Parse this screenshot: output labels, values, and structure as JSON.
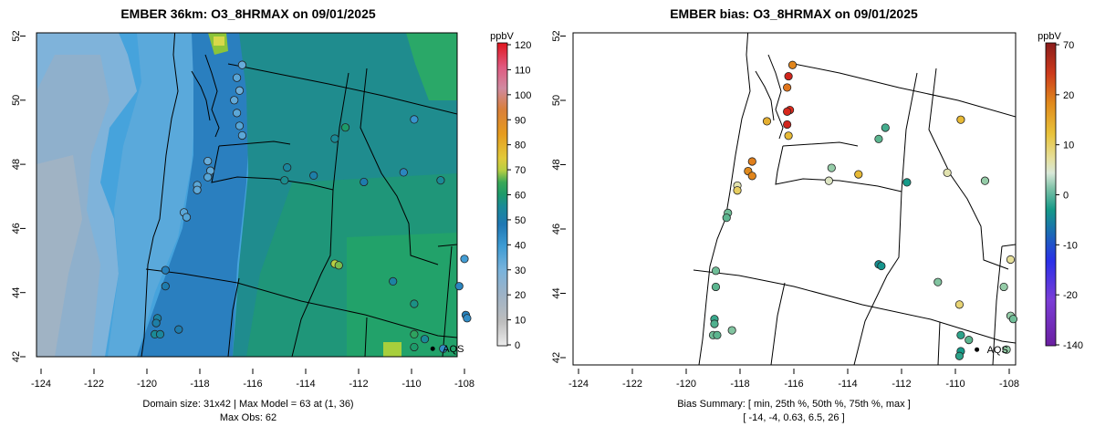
{
  "left_panel": {
    "title": "EMBER 36km: O3_8HRMAX on 09/01/2025",
    "x_ticks": [
      "-124",
      "-122",
      "-120",
      "-118",
      "-116",
      "-114",
      "-112",
      "-110",
      "-108"
    ],
    "y_ticks": [
      "42",
      "44",
      "46",
      "48",
      "50",
      "52"
    ],
    "colorbar_unit": "ppbV",
    "colorbar_ticks": [
      "0",
      "10",
      "20",
      "30",
      "40",
      "50",
      "60",
      "70",
      "80",
      "90",
      "100",
      "110",
      "120"
    ],
    "station_label": "AQS",
    "footer_line1": "Domain size: 31x42 | Max Model = 63 at (1, 36)",
    "footer_line2": "Max Obs: 62"
  },
  "right_panel": {
    "title": "EMBER bias: O3_8HRMAX on 09/01/2025",
    "x_ticks": [
      "-124",
      "-122",
      "-120",
      "-118",
      "-116",
      "-114",
      "-112",
      "-110",
      "-108"
    ],
    "y_ticks": [
      "42",
      "44",
      "46",
      "48",
      "50",
      "52"
    ],
    "colorbar_unit": "ppbV",
    "colorbar_ticks": [
      "-140",
      "-20",
      "-10",
      "0",
      "10",
      "20",
      "70"
    ],
    "station_label": "AQS",
    "footer_line1": "Bias Summary: [ min, 25th %, 50th %, 75th %, max ]",
    "footer_line2": "[ -14,   -4,   0.63,   6.5,   26 ]"
  },
  "colors": {
    "ocean_far": "#a3b4c4",
    "ocean_mid": "#8ab1d1",
    "coast_low": "#58a8d8",
    "model_mid": "#2f8ac4",
    "model_inland": "#1f8f9a",
    "model_high": "#21a06a",
    "model_peak": "#8bc43a",
    "bias_neg": "#3cb1a0",
    "bias_pos": "#e89a1a",
    "bias_high": "#e02020"
  },
  "stations_obs": [
    {
      "lon": -116.4,
      "lat": 51.1,
      "v": 33
    },
    {
      "lon": -116.6,
      "lat": 50.7,
      "v": 35
    },
    {
      "lon": -116.5,
      "lat": 50.3,
      "v": 32
    },
    {
      "lon": -116.7,
      "lat": 50.0,
      "v": 34
    },
    {
      "lon": -116.6,
      "lat": 49.6,
      "v": 35
    },
    {
      "lon": -116.5,
      "lat": 49.2,
      "v": 36
    },
    {
      "lon": -116.4,
      "lat": 48.9,
      "v": 35
    },
    {
      "lon": -117.7,
      "lat": 48.1,
      "v": 33
    },
    {
      "lon": -117.6,
      "lat": 47.8,
      "v": 34
    },
    {
      "lon": -117.7,
      "lat": 47.6,
      "v": 36
    },
    {
      "lon": -118.1,
      "lat": 47.35,
      "v": 35
    },
    {
      "lon": -118.1,
      "lat": 47.2,
      "v": 34
    },
    {
      "lon": -118.6,
      "lat": 46.5,
      "v": 35
    },
    {
      "lon": -118.5,
      "lat": 46.35,
      "v": 36
    },
    {
      "lon": -119.3,
      "lat": 44.7,
      "v": 44
    },
    {
      "lon": -119.3,
      "lat": 44.2,
      "v": 46
    },
    {
      "lon": -119.6,
      "lat": 43.2,
      "v": 48
    },
    {
      "lon": -119.65,
      "lat": 43.05,
      "v": 47
    },
    {
      "lon": -119.7,
      "lat": 42.7,
      "v": 50
    },
    {
      "lon": -119.5,
      "lat": 42.7,
      "v": 49
    },
    {
      "lon": -118.8,
      "lat": 42.85,
      "v": 46
    },
    {
      "lon": -114.7,
      "lat": 47.9,
      "v": 49
    },
    {
      "lon": -114.8,
      "lat": 47.5,
      "v": 51
    },
    {
      "lon": -113.7,
      "lat": 47.65,
      "v": 47
    },
    {
      "lon": -112.9,
      "lat": 48.8,
      "v": 50
    },
    {
      "lon": -112.5,
      "lat": 49.15,
      "v": 55
    },
    {
      "lon": -111.8,
      "lat": 47.45,
      "v": 46
    },
    {
      "lon": -109.9,
      "lat": 49.4,
      "v": 41
    },
    {
      "lon": -110.3,
      "lat": 47.75,
      "v": 43
    },
    {
      "lon": -108.9,
      "lat": 47.5,
      "v": 50
    },
    {
      "lon": -112.9,
      "lat": 44.9,
      "v": 62
    },
    {
      "lon": -112.75,
      "lat": 44.85,
      "v": 61
    },
    {
      "lon": -110.7,
      "lat": 44.35,
      "v": 48
    },
    {
      "lon": -109.9,
      "lat": 43.65,
      "v": 52
    },
    {
      "lon": -109.9,
      "lat": 42.7,
      "v": 58
    },
    {
      "lon": -109.9,
      "lat": 42.3,
      "v": 55
    },
    {
      "lon": -109.5,
      "lat": 42.55,
      "v": 50
    },
    {
      "lon": -108.8,
      "lat": 42.25,
      "v": 42
    },
    {
      "lon": -108.2,
      "lat": 44.2,
      "v": 43
    },
    {
      "lon": -108.0,
      "lat": 45.05,
      "v": 39
    },
    {
      "lon": -107.95,
      "lat": 43.3,
      "v": 44
    },
    {
      "lon": -107.9,
      "lat": 43.2,
      "v": 42
    }
  ],
  "stations_bias": [
    {
      "lon": -116.05,
      "lat": 51.1,
      "v": 15
    },
    {
      "lon": -116.2,
      "lat": 50.75,
      "v": 26
    },
    {
      "lon": -116.25,
      "lat": 50.4,
      "v": 18
    },
    {
      "lon": -116.15,
      "lat": 49.7,
      "v": 24
    },
    {
      "lon": -116.25,
      "lat": 49.65,
      "v": 25
    },
    {
      "lon": -116.25,
      "lat": 49.25,
      "v": 26
    },
    {
      "lon": -116.2,
      "lat": 48.9,
      "v": 9
    },
    {
      "lon": -117.0,
      "lat": 49.35,
      "v": 10
    },
    {
      "lon": -117.55,
      "lat": 48.1,
      "v": 16
    },
    {
      "lon": -117.7,
      "lat": 47.8,
      "v": 14
    },
    {
      "lon": -117.55,
      "lat": 47.65,
      "v": 15
    },
    {
      "lon": -118.1,
      "lat": 47.35,
      "v": 2
    },
    {
      "lon": -118.1,
      "lat": 47.2,
      "v": 6
    },
    {
      "lon": -118.45,
      "lat": 46.5,
      "v": -5
    },
    {
      "lon": -118.5,
      "lat": 46.35,
      "v": -6
    },
    {
      "lon": -118.9,
      "lat": 44.7,
      "v": -5
    },
    {
      "lon": -118.9,
      "lat": 44.2,
      "v": -6
    },
    {
      "lon": -118.95,
      "lat": 43.2,
      "v": -9
    },
    {
      "lon": -118.95,
      "lat": 43.05,
      "v": -7
    },
    {
      "lon": -119.0,
      "lat": 42.7,
      "v": -5
    },
    {
      "lon": -118.85,
      "lat": 42.7,
      "v": -6
    },
    {
      "lon": -118.3,
      "lat": 42.85,
      "v": -4
    },
    {
      "lon": -114.6,
      "lat": 47.9,
      "v": -3
    },
    {
      "lon": -114.7,
      "lat": 47.5,
      "v": 1
    },
    {
      "lon": -113.6,
      "lat": 47.7,
      "v": 9
    },
    {
      "lon": -112.85,
      "lat": 48.8,
      "v": -6
    },
    {
      "lon": -112.6,
      "lat": 49.15,
      "v": -8
    },
    {
      "lon": -111.8,
      "lat": 47.45,
      "v": -12
    },
    {
      "lon": -109.8,
      "lat": 49.4,
      "v": 9
    },
    {
      "lon": -110.3,
      "lat": 47.75,
      "v": 2
    },
    {
      "lon": -108.9,
      "lat": 47.5,
      "v": -3
    },
    {
      "lon": -112.85,
      "lat": 44.9,
      "v": -14
    },
    {
      "lon": -112.75,
      "lat": 44.85,
      "v": -13
    },
    {
      "lon": -110.65,
      "lat": 44.35,
      "v": -4
    },
    {
      "lon": -109.85,
      "lat": 43.65,
      "v": 5
    },
    {
      "lon": -109.8,
      "lat": 42.7,
      "v": -10
    },
    {
      "lon": -109.8,
      "lat": 42.2,
      "v": -12
    },
    {
      "lon": -109.5,
      "lat": 42.55,
      "v": -6
    },
    {
      "lon": -108.1,
      "lat": 42.25,
      "v": -3
    },
    {
      "lon": -108.2,
      "lat": 44.2,
      "v": -3
    },
    {
      "lon": -107.95,
      "lat": 45.05,
      "v": 3
    },
    {
      "lon": -107.95,
      "lat": 43.3,
      "v": -3
    },
    {
      "lon": -107.85,
      "lat": 43.2,
      "v": -5
    },
    {
      "lon": -109.85,
      "lat": 42.05,
      "v": -10
    }
  ],
  "aqs_point": {
    "lon": -109.2,
    "lat": 42.25
  }
}
